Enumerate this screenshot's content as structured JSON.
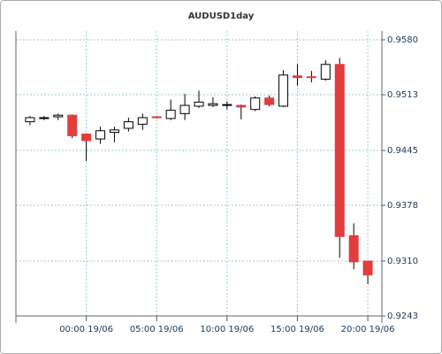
{
  "chart_data": {
    "type": "candlestick",
    "title": "AUDUSD1day",
    "x": [
      -4,
      -3,
      -2,
      -1,
      0,
      1,
      2,
      3,
      4,
      5,
      6,
      7,
      8,
      9,
      10,
      11,
      12,
      13,
      14,
      15,
      16,
      17,
      18,
      19,
      20
    ],
    "open": [
      0.948,
      0.9484,
      0.9486,
      0.9488,
      0.9465,
      0.9459,
      0.9467,
      0.9472,
      0.9477,
      0.9486,
      0.9484,
      0.949,
      0.9499,
      0.95,
      0.95,
      0.95,
      0.9495,
      0.9509,
      0.9499,
      0.9536,
      0.9535,
      0.9532,
      0.955,
      0.9341,
      0.931
    ],
    "high": [
      0.9487,
      0.9487,
      0.949,
      0.9489,
      0.9466,
      0.9474,
      0.9474,
      0.9485,
      0.949,
      0.9487,
      0.9507,
      0.9514,
      0.9518,
      0.951,
      0.9505,
      0.9501,
      0.9511,
      0.9512,
      0.9543,
      0.955,
      0.9542,
      0.9555,
      0.9558,
      0.9356,
      0.931
    ],
    "low": [
      0.9476,
      0.9482,
      0.9482,
      0.946,
      0.9432,
      0.9453,
      0.9455,
      0.9468,
      0.947,
      0.9484,
      0.9482,
      0.9482,
      0.9497,
      0.9498,
      0.9495,
      0.9483,
      0.9493,
      0.9499,
      0.9498,
      0.9524,
      0.9528,
      0.953,
      0.9314,
      0.93,
      0.9282
    ],
    "close": [
      0.9485,
      0.9485,
      0.9488,
      0.9463,
      0.9457,
      0.9469,
      0.947,
      0.948,
      0.9485,
      0.9485,
      0.9494,
      0.95,
      0.9504,
      0.9502,
      0.9501,
      0.9498,
      0.9509,
      0.9501,
      0.9537,
      0.9534,
      0.9534,
      0.955,
      0.934,
      0.9309,
      0.9293
    ],
    "up_color": "#ffffff",
    "down_color": "#e23c3c",
    "outline_color": "#000000",
    "xlim": [
      -5,
      21
    ],
    "xticks": [
      {
        "value": 0,
        "label": "00:00 19/06"
      },
      {
        "value": 5,
        "label": "05:00 19/06"
      },
      {
        "value": 10,
        "label": "10:00 19/06"
      },
      {
        "value": 15,
        "label": "15:00 19/06"
      },
      {
        "value": 20,
        "label": "20:00 19/06"
      }
    ],
    "ylim": [
      0.9243,
      0.958
    ],
    "yticks": [
      {
        "value": 0.958,
        "label": "0.9580"
      },
      0.9513,
      0.9445,
      0.9378,
      {
        "value": 0.931,
        "label": "0.9310"
      },
      0.9243
    ],
    "y_axis_side": "right",
    "grid": true
  }
}
